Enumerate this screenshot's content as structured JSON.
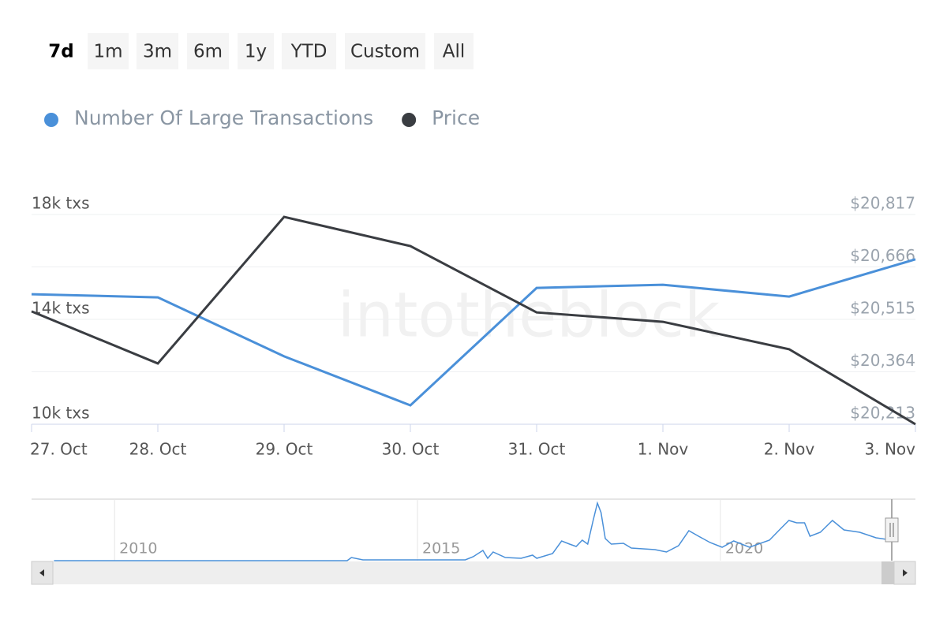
{
  "range_buttons": [
    "7d",
    "1m",
    "3m",
    "6m",
    "1y",
    "YTD",
    "Custom",
    "All"
  ],
  "watermark": "intotheblock",
  "chart_data": {
    "type": "line",
    "categories": [
      "27. Oct",
      "28. Oct",
      "29. Oct",
      "30. Oct",
      "31. Oct",
      "1. Nov",
      "2. Nov",
      "3. Nov"
    ],
    "series": [
      {
        "name": "Number Of Large Transactions",
        "color": "#4a90d9",
        "axis": "y",
        "values": [
          14960,
          14840,
          12590,
          10720,
          15200,
          15320,
          14870,
          16290
        ]
      },
      {
        "name": "Price",
        "color": "#3a3d42",
        "axis": "y2",
        "values": [
          20538,
          20388,
          20810,
          20726,
          20535,
          20508,
          20429,
          20213
        ]
      }
    ],
    "ylim": [
      10000,
      18000
    ],
    "yticks": [
      {
        "value": 10000,
        "label": "10k txs"
      },
      {
        "value": 14000,
        "label": "14k txs"
      },
      {
        "value": 18000,
        "label": "18k txs"
      }
    ],
    "y2lim": [
      20213,
      20817
    ],
    "y2ticks": [
      {
        "value": 20213,
        "label": "$20,213"
      },
      {
        "value": 20364,
        "label": "$20,364"
      },
      {
        "value": 20515,
        "label": "$20,515"
      },
      {
        "value": 20666,
        "label": "$20,666"
      },
      {
        "value": 20817,
        "label": "$20,817"
      }
    ],
    "grid": true,
    "legend": "top-left",
    "navigator": {
      "color": "#4a90d9",
      "xlim": [
        2008.63,
        2023.22
      ],
      "ylim": [
        0,
        78
      ],
      "xticks": [
        2010,
        2015,
        2020
      ],
      "x": [
        2009.0,
        2013.84,
        2013.91,
        2014.1,
        2015.79,
        2015.92,
        2016.08,
        2016.16,
        2016.25,
        2016.45,
        2016.71,
        2016.9,
        2016.97,
        2017.23,
        2017.38,
        2017.51,
        2017.62,
        2017.72,
        2017.81,
        2017.9,
        2017.97,
        2018.03,
        2018.1,
        2018.2,
        2018.4,
        2018.53,
        2018.92,
        2019.11,
        2019.31,
        2019.48,
        2019.64,
        2019.83,
        2020.03,
        2020.22,
        2020.48,
        2020.81,
        2021.0,
        2021.13,
        2021.26,
        2021.39,
        2021.48,
        2021.65,
        2021.85,
        2022.04,
        2022.3,
        2022.57,
        2022.83
      ],
      "values": [
        0,
        0,
        4,
        1,
        1,
        5,
        13,
        3,
        11,
        4,
        3,
        7,
        3,
        9,
        25,
        21,
        18,
        26,
        21,
        51,
        73,
        61,
        28,
        21,
        22,
        16,
        14,
        11,
        19,
        38,
        31,
        23,
        17,
        25,
        17,
        26,
        41,
        51,
        48,
        48,
        31,
        36,
        51,
        39,
        36,
        29,
        26
      ]
    }
  }
}
